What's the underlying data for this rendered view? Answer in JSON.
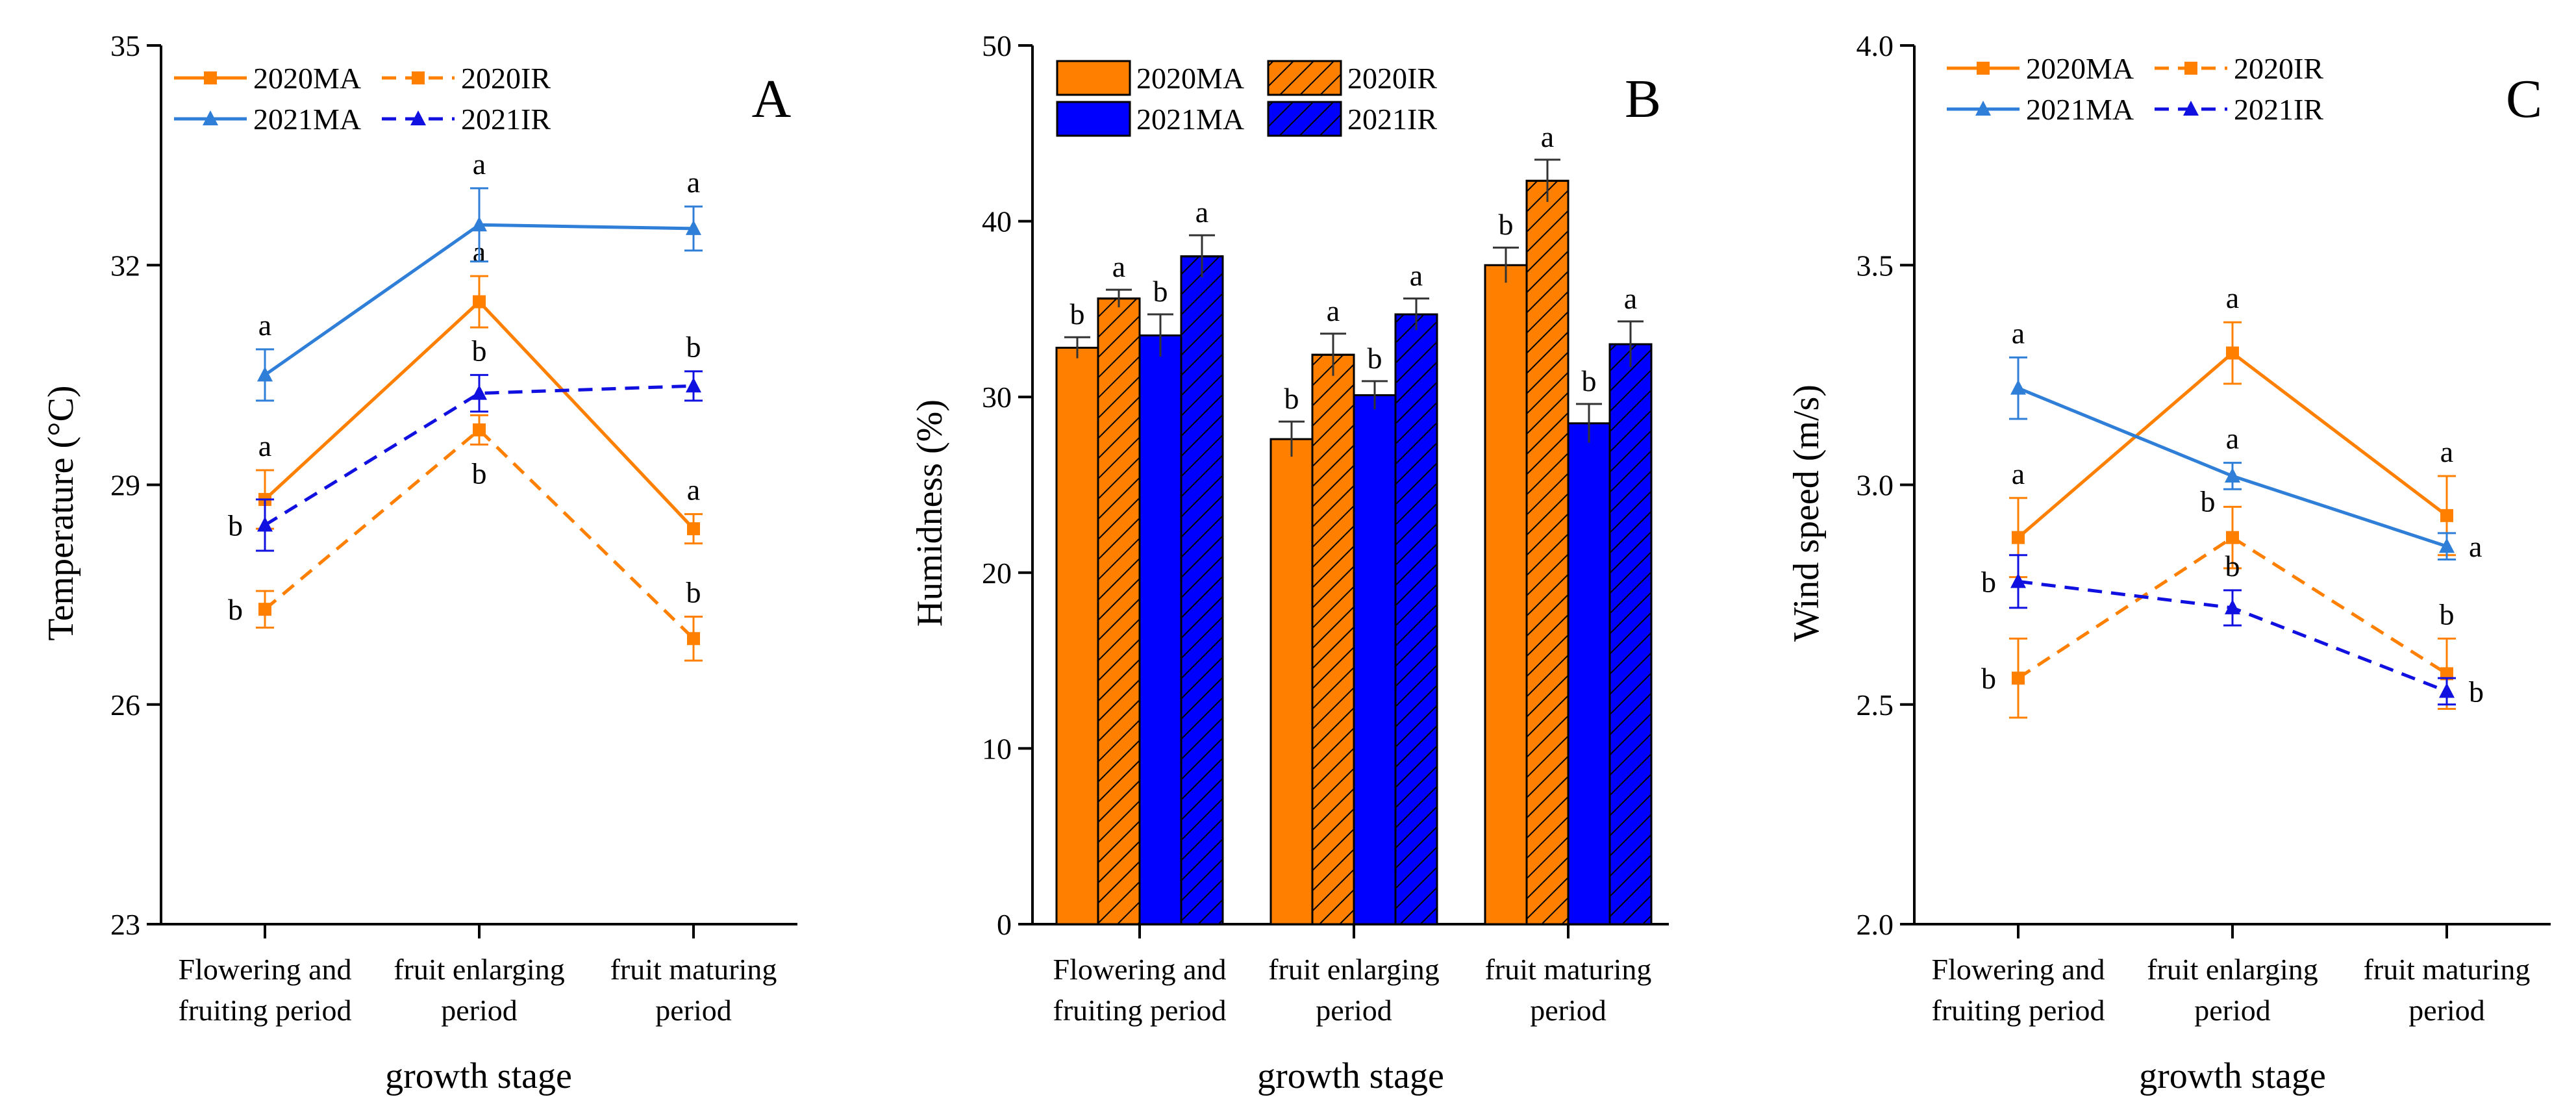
{
  "colors": {
    "orange": "#ff8000",
    "blue_line": "#2f7ed8",
    "blue_dark": "#1010e0",
    "blue_bar": "#0000ff",
    "black": "#000000"
  },
  "chart_data": [
    {
      "type": "line",
      "panel": "A",
      "ylabel": "Temperature (°C)",
      "xlabel": "growth stage",
      "ylim": [
        23,
        35
      ],
      "yticks": [
        23,
        26,
        29,
        32,
        35
      ],
      "categories": [
        "Flowering and fruiting period",
        "fruit enlarging period",
        "fruit maturing period"
      ],
      "category_lines": [
        [
          "Flowering and",
          "fruiting period"
        ],
        [
          "fruit enlarging",
          "period"
        ],
        [
          "fruit maturing",
          "period"
        ]
      ],
      "legend": "top-left",
      "series": [
        {
          "name": "2020MA",
          "color": "#ff8000",
          "dashed": false,
          "marker": "square",
          "values": [
            28.8,
            31.5,
            28.4
          ],
          "errors": [
            0.4,
            0.35,
            0.2
          ],
          "sig": [
            "a",
            "a",
            "a"
          ]
        },
        {
          "name": "2020IR",
          "color": "#ff8000",
          "dashed": true,
          "marker": "square",
          "values": [
            27.3,
            29.75,
            26.9
          ],
          "errors": [
            0.25,
            0.2,
            0.3
          ],
          "sig": [
            "b",
            "b",
            "b"
          ]
        },
        {
          "name": "2021MA",
          "color": "#2f7ed8",
          "dashed": false,
          "marker": "triangle",
          "values": [
            30.5,
            32.55,
            32.5
          ],
          "errors": [
            0.35,
            0.5,
            0.3
          ],
          "sig": [
            "a",
            "a",
            "a"
          ]
        },
        {
          "name": "2021IR",
          "color": "#1010e0",
          "dashed": true,
          "marker": "triangle",
          "values": [
            28.45,
            30.25,
            30.35
          ],
          "errors": [
            0.35,
            0.25,
            0.2
          ],
          "sig": [
            "b",
            "b",
            "b"
          ]
        }
      ]
    },
    {
      "type": "bar",
      "panel": "B",
      "ylabel": "Humidness (%)",
      "xlabel": "growth stage",
      "ylim": [
        0,
        50
      ],
      "yticks": [
        0,
        10,
        20,
        30,
        40,
        50
      ],
      "categories": [
        "Flowering and fruiting period",
        "fruit enlarging period",
        "fruit maturing period"
      ],
      "category_lines": [
        [
          "Flowering and",
          "fruiting period"
        ],
        [
          "fruit enlarging",
          "period"
        ],
        [
          "fruit maturing",
          "period"
        ]
      ],
      "legend": "top-left",
      "series": [
        {
          "name": "2020MA",
          "color": "#ff8000",
          "hatched": false,
          "values": [
            32.8,
            27.6,
            37.5
          ],
          "errors": [
            0.6,
            1.0,
            1.0
          ],
          "sig": [
            "b",
            "b",
            "b"
          ]
        },
        {
          "name": "2020IR",
          "color": "#ff8000",
          "hatched": true,
          "values": [
            35.6,
            32.4,
            42.3
          ],
          "errors": [
            0.5,
            1.2,
            1.2
          ],
          "sig": [
            "a",
            "a",
            "a"
          ]
        },
        {
          "name": "2021MA",
          "color": "#0000ff",
          "hatched": false,
          "values": [
            33.5,
            30.1,
            28.5
          ],
          "errors": [
            1.2,
            0.8,
            1.1
          ],
          "sig": [
            "b",
            "b",
            "b"
          ]
        },
        {
          "name": "2021IR",
          "color": "#0000ff",
          "hatched": true,
          "values": [
            38.0,
            34.7,
            33.0
          ],
          "errors": [
            1.2,
            0.9,
            1.3
          ],
          "sig": [
            "a",
            "a",
            "a"
          ]
        }
      ]
    },
    {
      "type": "line",
      "panel": "C",
      "ylabel": "Wind speed (m/s)",
      "xlabel": "growth stage",
      "ylim": [
        2.0,
        4.0
      ],
      "yticks": [
        2.0,
        2.5,
        3.0,
        3.5,
        4.0
      ],
      "categories": [
        "Flowering and fruiting period",
        "fruit enlarging period",
        "fruit maturing period"
      ],
      "category_lines": [
        [
          "Flowering and",
          "fruiting period"
        ],
        [
          "fruit enlarging",
          "period"
        ],
        [
          "fruit maturing",
          "period"
        ]
      ],
      "legend": "top-left",
      "series": [
        {
          "name": "2020MA",
          "color": "#ff8000",
          "dashed": false,
          "marker": "square",
          "values": [
            2.88,
            3.3,
            2.93
          ],
          "errors": [
            0.09,
            0.07,
            0.09
          ],
          "sig": [
            "a",
            "a",
            "a"
          ]
        },
        {
          "name": "2020IR",
          "color": "#ff8000",
          "dashed": true,
          "marker": "square",
          "values": [
            2.56,
            2.88,
            2.57
          ],
          "errors": [
            0.09,
            0.07,
            0.08
          ],
          "sig": [
            "b",
            "b",
            "b"
          ]
        },
        {
          "name": "2021MA",
          "color": "#2f7ed8",
          "dashed": false,
          "marker": "triangle",
          "values": [
            3.22,
            3.02,
            2.86
          ],
          "errors": [
            0.07,
            0.03,
            0.03
          ],
          "sig": [
            "a",
            "a",
            "a"
          ]
        },
        {
          "name": "2021IR",
          "color": "#1010e0",
          "dashed": true,
          "marker": "triangle",
          "values": [
            2.78,
            2.72,
            2.53
          ],
          "errors": [
            0.06,
            0.04,
            0.03
          ],
          "sig": [
            "b",
            "b",
            "b"
          ]
        }
      ]
    }
  ]
}
